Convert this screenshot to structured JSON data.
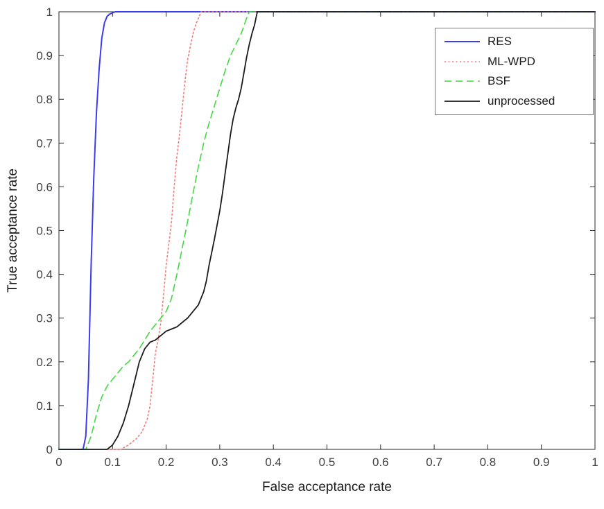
{
  "chart_data": {
    "type": "line",
    "title": "",
    "xlabel": "False acceptance rate",
    "ylabel": "True acceptance rate",
    "xlim": [
      0,
      1
    ],
    "ylim": [
      0,
      1
    ],
    "grid": false,
    "legend_position": "top-right",
    "axis_color": "#262626",
    "tick_color": "#404040",
    "x_ticks": [
      0,
      0.1,
      0.2,
      0.3,
      0.4,
      0.5,
      0.6,
      0.7,
      0.8,
      0.9,
      1
    ],
    "x_tick_labels": [
      "0",
      "0.1",
      "0.2",
      "0.3",
      "0.4",
      "0.5",
      "0.6",
      "0.7",
      "0.8",
      "0.9",
      "1"
    ],
    "y_ticks": [
      0,
      0.1,
      0.2,
      0.3,
      0.4,
      0.5,
      0.6,
      0.7,
      0.8,
      0.9,
      1
    ],
    "y_tick_labels": [
      "0",
      "0.1",
      "0.2",
      "0.3",
      "0.4",
      "0.5",
      "0.6",
      "0.7",
      "0.8",
      "0.9",
      "1"
    ],
    "series": [
      {
        "name": "RES",
        "color": "#3b3bef",
        "style": "solid",
        "width": 2,
        "points": [
          [
            0,
            0
          ],
          [
            0.045,
            0
          ],
          [
            0.05,
            0.03
          ],
          [
            0.055,
            0.16
          ],
          [
            0.06,
            0.42
          ],
          [
            0.065,
            0.62
          ],
          [
            0.07,
            0.77
          ],
          [
            0.075,
            0.87
          ],
          [
            0.08,
            0.94
          ],
          [
            0.085,
            0.975
          ],
          [
            0.09,
            0.99
          ],
          [
            0.095,
            0.995
          ],
          [
            0.105,
            1
          ],
          [
            1,
            1
          ]
        ]
      },
      {
        "name": "ML-WPD",
        "color": "#f47c7c",
        "style": "dotted",
        "width": 1.6,
        "points": [
          [
            0,
            0
          ],
          [
            0.115,
            0
          ],
          [
            0.13,
            0.01
          ],
          [
            0.145,
            0.025
          ],
          [
            0.155,
            0.04
          ],
          [
            0.165,
            0.07
          ],
          [
            0.17,
            0.1
          ],
          [
            0.175,
            0.16
          ],
          [
            0.18,
            0.22
          ],
          [
            0.185,
            0.25
          ],
          [
            0.19,
            0.29
          ],
          [
            0.195,
            0.35
          ],
          [
            0.2,
            0.42
          ],
          [
            0.205,
            0.47
          ],
          [
            0.21,
            0.52
          ],
          [
            0.215,
            0.6
          ],
          [
            0.22,
            0.67
          ],
          [
            0.225,
            0.72
          ],
          [
            0.23,
            0.78
          ],
          [
            0.235,
            0.84
          ],
          [
            0.24,
            0.89
          ],
          [
            0.245,
            0.92
          ],
          [
            0.25,
            0.95
          ],
          [
            0.255,
            0.97
          ],
          [
            0.26,
            0.985
          ],
          [
            0.265,
            1
          ],
          [
            1,
            1
          ]
        ]
      },
      {
        "name": "BSF",
        "color": "#41d841",
        "style": "dashed",
        "width": 1.6,
        "points": [
          [
            0,
            0
          ],
          [
            0.05,
            0
          ],
          [
            0.06,
            0.03
          ],
          [
            0.07,
            0.08
          ],
          [
            0.08,
            0.12
          ],
          [
            0.09,
            0.145
          ],
          [
            0.1,
            0.16
          ],
          [
            0.11,
            0.175
          ],
          [
            0.12,
            0.19
          ],
          [
            0.13,
            0.2
          ],
          [
            0.14,
            0.215
          ],
          [
            0.15,
            0.23
          ],
          [
            0.16,
            0.25
          ],
          [
            0.17,
            0.27
          ],
          [
            0.18,
            0.285
          ],
          [
            0.19,
            0.3
          ],
          [
            0.2,
            0.315
          ],
          [
            0.21,
            0.345
          ],
          [
            0.22,
            0.4
          ],
          [
            0.23,
            0.46
          ],
          [
            0.24,
            0.52
          ],
          [
            0.25,
            0.585
          ],
          [
            0.26,
            0.645
          ],
          [
            0.27,
            0.7
          ],
          [
            0.28,
            0.745
          ],
          [
            0.29,
            0.785
          ],
          [
            0.3,
            0.825
          ],
          [
            0.31,
            0.865
          ],
          [
            0.32,
            0.9
          ],
          [
            0.33,
            0.925
          ],
          [
            0.34,
            0.95
          ],
          [
            0.35,
            0.985
          ],
          [
            0.355,
            1
          ],
          [
            1,
            1
          ]
        ]
      },
      {
        "name": "unprocessed",
        "color": "#1a1a1a",
        "style": "solid",
        "width": 1.8,
        "points": [
          [
            0,
            0
          ],
          [
            0.09,
            0
          ],
          [
            0.1,
            0.01
          ],
          [
            0.11,
            0.03
          ],
          [
            0.12,
            0.06
          ],
          [
            0.13,
            0.1
          ],
          [
            0.14,
            0.15
          ],
          [
            0.15,
            0.2
          ],
          [
            0.16,
            0.23
          ],
          [
            0.17,
            0.245
          ],
          [
            0.18,
            0.25
          ],
          [
            0.19,
            0.26
          ],
          [
            0.2,
            0.27
          ],
          [
            0.21,
            0.275
          ],
          [
            0.22,
            0.28
          ],
          [
            0.23,
            0.29
          ],
          [
            0.24,
            0.3
          ],
          [
            0.25,
            0.315
          ],
          [
            0.26,
            0.33
          ],
          [
            0.27,
            0.36
          ],
          [
            0.275,
            0.385
          ],
          [
            0.28,
            0.42
          ],
          [
            0.29,
            0.48
          ],
          [
            0.3,
            0.545
          ],
          [
            0.305,
            0.585
          ],
          [
            0.31,
            0.63
          ],
          [
            0.315,
            0.675
          ],
          [
            0.32,
            0.72
          ],
          [
            0.325,
            0.755
          ],
          [
            0.33,
            0.78
          ],
          [
            0.335,
            0.8
          ],
          [
            0.34,
            0.825
          ],
          [
            0.345,
            0.86
          ],
          [
            0.35,
            0.895
          ],
          [
            0.355,
            0.925
          ],
          [
            0.36,
            0.95
          ],
          [
            0.365,
            0.97
          ],
          [
            0.37,
            1
          ],
          [
            1,
            1
          ]
        ]
      }
    ]
  }
}
